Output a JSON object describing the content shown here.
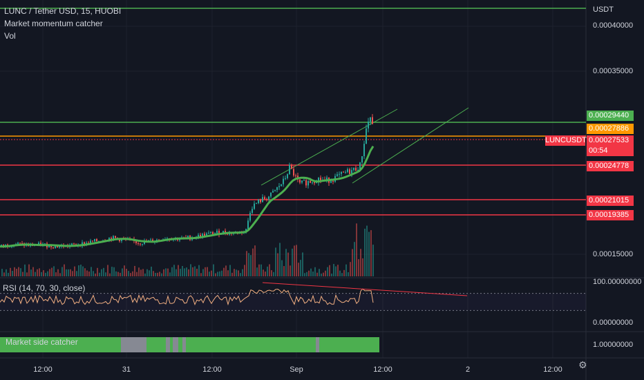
{
  "header": {
    "symbol_line": "LUNC / Tether USD, 15, HUOBI",
    "indicator_1": "Market momentum catcher",
    "indicator_2": "Vol"
  },
  "price_axis": {
    "currency": "USDT",
    "ticks": [
      "0.00040000",
      "0.00035000",
      "0.00015000"
    ]
  },
  "price_tags": [
    {
      "label": "0.00029440",
      "color": "#4caf50"
    },
    {
      "label": "0.00027886",
      "color": "#ff9800"
    },
    {
      "label": "0.00027533",
      "color": "#f23645"
    },
    {
      "label": "0.00024778",
      "color": "#f23645"
    },
    {
      "label": "0.00021015",
      "color": "#f23645"
    },
    {
      "label": "0.00019385",
      "color": "#f23645"
    }
  ],
  "symbol_tag": "LUNCUSDT",
  "countdown": "00:54",
  "rsi": {
    "legend": "RSI (14, 70, 30, close)",
    "ticks": [
      "100.00000000",
      "0.00000000"
    ]
  },
  "market_side": {
    "legend": "Market side catcher",
    "tick": "1.00000000"
  },
  "time_axis": [
    "12:00",
    "31",
    "12:00",
    "Sep",
    "12:00",
    "2",
    "12:00"
  ],
  "colors": {
    "background": "#131722",
    "up": "#26a69a",
    "down": "#ef5350",
    "support": "#f23645",
    "resistance": "#4caf50",
    "orange": "#ff9800"
  },
  "chart_data": {
    "type": "candlestick",
    "symbol": "LUNCUSDT",
    "interval": "15",
    "exchange": "HUOBI",
    "y_range": [
      0.00013,
      0.00042
    ],
    "horizontal_levels": [
      0.0002944,
      0.00027886,
      0.00027533,
      0.00024778,
      0.00021015,
      0.00019385
    ],
    "last_price": 0.00027533,
    "close_path": [
      [
        0,
        0.000157
      ],
      [
        20,
        0.00016
      ],
      [
        40,
        0.000158
      ],
      [
        60,
        0.000159
      ],
      [
        80,
        0.000157
      ],
      [
        100,
        0.000158
      ],
      [
        120,
        0.00016
      ],
      [
        140,
        0.000163
      ],
      [
        160,
        0.000166
      ],
      [
        180,
        0.000164
      ],
      [
        200,
        0.000161
      ],
      [
        220,
        0.000163
      ],
      [
        240,
        0.000166
      ],
      [
        260,
        0.000165
      ],
      [
        280,
        0.000167
      ],
      [
        300,
        0.00017
      ],
      [
        320,
        0.000172
      ],
      [
        340,
        0.000171
      ],
      [
        355,
        0.000174
      ],
      [
        362,
        0.000198
      ],
      [
        375,
        0.000205
      ],
      [
        390,
        0.00021
      ],
      [
        400,
        0.000218
      ],
      [
        410,
        0.000226
      ],
      [
        418,
        0.00024
      ],
      [
        425,
        0.000232
      ],
      [
        432,
        0.000222
      ],
      [
        440,
        0.000224
      ],
      [
        450,
        0.000226
      ],
      [
        460,
        0.000228
      ],
      [
        470,
        0.000226
      ],
      [
        480,
        0.000228
      ],
      [
        490,
        0.000231
      ],
      [
        500,
        0.000235
      ],
      [
        510,
        0.000237
      ],
      [
        520,
        0.000242
      ],
      [
        525,
        0.000262
      ],
      [
        530,
        0.000285
      ],
      [
        535,
        0.000293
      ],
      [
        540,
        0.000275
      ]
    ],
    "rsi_range": [
      0,
      100
    ],
    "rsi_levels": [
      70,
      30
    ]
  }
}
